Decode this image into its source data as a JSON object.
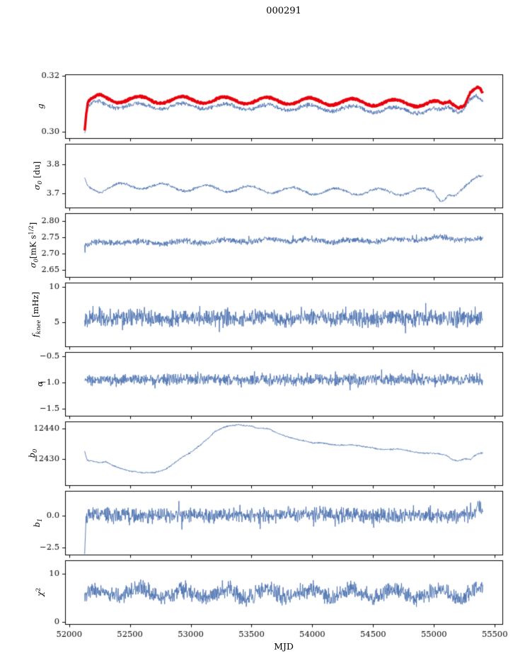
{
  "chart_data": {
    "type": "line",
    "title": "000291",
    "xlabel": "MJD",
    "xlim": [
      51967,
      55563
    ],
    "x_data_range": [
      52128,
      55402
    ],
    "xticks": [
      52000,
      52500,
      53000,
      53500,
      54000,
      54500,
      55000,
      55500
    ],
    "xtick_labels": [
      "52000",
      "52500",
      "53000",
      "53500",
      "54000",
      "54500",
      "55000",
      "55500"
    ],
    "colors": {
      "primary_line": "#4c72b0",
      "highlight_line": "#e8000b",
      "axis": "#000000"
    },
    "panels": [
      {
        "ylabel_segments": [
          [
            "i",
            "g"
          ]
        ],
        "ylim": [
          0.2977,
          0.3205
        ],
        "yticks": [
          0.3,
          0.32
        ],
        "ytick_labels": [
          "0.30",
          "0.32"
        ],
        "series": [
          {
            "name": "g-secondary",
            "color": "#4c72b0",
            "width": 0.9,
            "seed": 3,
            "noise": 0.0006,
            "osc_amp": 0.001,
            "osc_period": 350,
            "osc_phase": 52142,
            "trend": [
              [
                52130,
                0.3
              ],
              [
                52145,
                0.3085
              ],
              [
                52200,
                0.3098
              ],
              [
                52300,
                0.3096
              ],
              [
                52500,
                0.3093
              ],
              [
                52700,
                0.309
              ],
              [
                53000,
                0.3092
              ],
              [
                53300,
                0.309
              ],
              [
                53600,
                0.3087
              ],
              [
                54000,
                0.3085
              ],
              [
                54300,
                0.3082
              ],
              [
                54600,
                0.3078
              ],
              [
                54900,
                0.3075
              ],
              [
                55000,
                0.3074
              ],
              [
                55060,
                0.307
              ],
              [
                55120,
                0.309
              ],
              [
                55180,
                0.3082
              ],
              [
                55230,
                0.308
              ],
              [
                55290,
                0.3113
              ],
              [
                55340,
                0.312
              ],
              [
                55380,
                0.311
              ],
              [
                55402,
                0.3098
              ]
            ]
          },
          {
            "name": "g-main",
            "color": "#e8000b",
            "width": 3.4,
            "seed": 5,
            "noise": 0.00028,
            "osc_amp": 0.0012,
            "osc_period": 350,
            "osc_phase": 52142,
            "trend": [
              [
                52128,
                0.3005
              ],
              [
                52140,
                0.306
              ],
              [
                52155,
                0.3105
              ],
              [
                52250,
                0.3122
              ],
              [
                52400,
                0.3116
              ],
              [
                52700,
                0.3113
              ],
              [
                53000,
                0.3114
              ],
              [
                53400,
                0.3112
              ],
              [
                53800,
                0.311
              ],
              [
                54200,
                0.3107
              ],
              [
                54600,
                0.3104
              ],
              [
                54900,
                0.3101
              ],
              [
                55010,
                0.31
              ],
              [
                55070,
                0.3092
              ],
              [
                55130,
                0.311
              ],
              [
                55200,
                0.3098
              ],
              [
                55250,
                0.3102
              ],
              [
                55300,
                0.3138
              ],
              [
                55350,
                0.3147
              ],
              [
                55380,
                0.3143
              ],
              [
                55402,
                0.3125
              ]
            ]
          }
        ]
      },
      {
        "ylabel_segments": [
          [
            "i",
            "σ"
          ],
          [
            "isub",
            "0"
          ],
          [
            "n",
            " [du]"
          ]
        ],
        "ylim": [
          3.65,
          3.87
        ],
        "yticks": [
          3.7,
          3.8
        ],
        "ytick_labels": [
          "3.7",
          "3.8"
        ],
        "series": [
          {
            "name": "sigma0-du",
            "color": "#4c72b0",
            "width": 0.9,
            "seed": 9,
            "noise": 0.0035,
            "osc_amp": 0.011,
            "osc_period": 355,
            "osc_phase": 52330,
            "trend": [
              [
                52128,
                3.748
              ],
              [
                52150,
                3.726
              ],
              [
                52250,
                3.712
              ],
              [
                52400,
                3.722
              ],
              [
                52600,
                3.726
              ],
              [
                52900,
                3.718
              ],
              [
                53200,
                3.716
              ],
              [
                53600,
                3.712
              ],
              [
                54000,
                3.706
              ],
              [
                54400,
                3.705
              ],
              [
                54800,
                3.704
              ],
              [
                55000,
                3.706
              ],
              [
                55060,
                3.678
              ],
              [
                55120,
                3.7
              ],
              [
                55180,
                3.69
              ],
              [
                55240,
                3.705
              ],
              [
                55300,
                3.73
              ],
              [
                55360,
                3.76
              ],
              [
                55402,
                3.768
              ]
            ]
          }
        ]
      },
      {
        "ylabel_segments": [
          [
            "i",
            "σ"
          ],
          [
            "isub",
            "0"
          ],
          [
            "n",
            "[mK s"
          ],
          [
            "sup",
            "1/2"
          ],
          [
            "n",
            "]"
          ]
        ],
        "ylim": [
          2.628,
          2.824
        ],
        "yticks": [
          2.65,
          2.7,
          2.75,
          2.8
        ],
        "ytick_labels": [
          "2.65",
          "2.70",
          "2.75",
          "2.80"
        ],
        "series": [
          {
            "name": "sigma0-mks",
            "color": "#4c72b0",
            "width": 0.9,
            "seed": 13,
            "noise": 0.0065,
            "osc_amp": 0.004,
            "osc_period": 350,
            "osc_phase": 52142,
            "spike_prob": 0.015,
            "spike_amp": 0.018,
            "trend": [
              [
                52128,
                2.728
              ],
              [
                52400,
                2.736
              ],
              [
                52700,
                2.733
              ],
              [
                53200,
                2.737
              ],
              [
                53700,
                2.742
              ],
              [
                54200,
                2.738
              ],
              [
                54700,
                2.742
              ],
              [
                55100,
                2.748
              ],
              [
                55250,
                2.745
              ],
              [
                55402,
                2.742
              ]
            ]
          }
        ]
      },
      {
        "ylabel_segments": [
          [
            "i",
            "f"
          ],
          [
            "isub",
            "knee"
          ],
          [
            "n",
            " [mHz]"
          ]
        ],
        "ylim": [
          1.6,
          10.6
        ],
        "yticks": [
          5,
          10
        ],
        "ytick_labels": [
          "5",
          "10"
        ],
        "series": [
          {
            "name": "fknee",
            "color": "#4c72b0",
            "width": 0.9,
            "seed": 17,
            "noise": 0.9,
            "osc_amp": 0.12,
            "osc_period": 350,
            "osc_phase": 52142,
            "spike_prob": 0.05,
            "spike_amp": 1.6,
            "trend": [
              [
                52128,
                5.55
              ],
              [
                53000,
                5.6
              ],
              [
                54000,
                5.55
              ],
              [
                55000,
                5.6
              ],
              [
                55402,
                5.6
              ]
            ]
          }
        ]
      },
      {
        "ylabel_segments": [
          [
            "i",
            "α"
          ]
        ],
        "ylim": [
          -1.635,
          -0.419
        ],
        "yticks": [
          -1.5,
          -1.0,
          -0.5
        ],
        "ytick_labels": [
          "−1.5",
          "−1.0",
          "−0.5"
        ],
        "series": [
          {
            "name": "alpha",
            "color": "#4c72b0",
            "width": 0.9,
            "seed": 21,
            "noise": 0.08,
            "osc_amp": 0,
            "osc_period": 350,
            "osc_phase": 52142,
            "spike_prob": 0.03,
            "spike_amp": 0.15,
            "trend": [
              [
                52128,
                -0.95
              ],
              [
                53000,
                -0.94
              ],
              [
                54000,
                -0.95
              ],
              [
                55000,
                -0.94
              ],
              [
                55402,
                -0.95
              ]
            ]
          }
        ]
      },
      {
        "ylabel_segments": [
          [
            "i",
            "b"
          ],
          [
            "isub",
            "0"
          ]
        ],
        "ylim": [
          12421.4,
          12442.3
        ],
        "yticks": [
          12430,
          12440
        ],
        "ytick_labels": [
          "12430",
          "12440"
        ],
        "series": [
          {
            "name": "b0",
            "color": "#4c72b0",
            "width": 0.9,
            "seed": 25,
            "noise": 0.18,
            "osc_amp": 0.25,
            "osc_period": 355,
            "osc_phase": 52142,
            "trend": [
              [
                52128,
                12432.5
              ],
              [
                52150,
                12429.5
              ],
              [
                52250,
                12428.6
              ],
              [
                52300,
                12429.0
              ],
              [
                52400,
                12427.5
              ],
              [
                52500,
                12426.0
              ],
              [
                52600,
                12425.2
              ],
              [
                52700,
                12425.6
              ],
              [
                52800,
                12427.0
              ],
              [
                52900,
                12429.5
              ],
              [
                53000,
                12432.0
              ],
              [
                53100,
                12435.5
              ],
              [
                53200,
                12439.0
              ],
              [
                53300,
                12440.5
              ],
              [
                53400,
                12441.3
              ],
              [
                53500,
                12441.0
              ],
              [
                53550,
                12440.2
              ],
              [
                53650,
                12439.5
              ],
              [
                53700,
                12438.5
              ],
              [
                53800,
                12437.5
              ],
              [
                53900,
                12436.3
              ],
              [
                54000,
                12435.0
              ],
              [
                54100,
                12435.2
              ],
              [
                54200,
                12434.8
              ],
              [
                54300,
                12434.5
              ],
              [
                54400,
                12434.0
              ],
              [
                54500,
                12433.8
              ],
              [
                54600,
                12433.2
              ],
              [
                54700,
                12433.0
              ],
              [
                54800,
                12432.6
              ],
              [
                54900,
                12432.2
              ],
              [
                55000,
                12431.8
              ],
              [
                55100,
                12431.0
              ],
              [
                55150,
                12429.8
              ],
              [
                55200,
                12429.5
              ],
              [
                55250,
                12430.3
              ],
              [
                55300,
                12430.0
              ],
              [
                55350,
                12431.5
              ],
              [
                55402,
                12431.8
              ]
            ]
          }
        ]
      },
      {
        "ylabel_segments": [
          [
            "i",
            "b"
          ],
          [
            "isub",
            "1"
          ]
        ],
        "ylim": [
          -3.06,
          1.94
        ],
        "yticks": [
          -2.5,
          0.0
        ],
        "ytick_labels": [
          "−2.5",
          "0.0"
        ],
        "series": [
          {
            "name": "b1",
            "color": "#4c72b0",
            "width": 0.9,
            "seed": 29,
            "noise": 0.45,
            "osc_amp": 0,
            "osc_period": 350,
            "osc_phase": 52142,
            "spike_prob": 0.04,
            "spike_amp": 0.8,
            "trend": [
              [
                52128,
                -2.55
              ],
              [
                52138,
                -0.6
              ],
              [
                52150,
                0.05
              ],
              [
                53000,
                0.0
              ],
              [
                54000,
                0.05
              ],
              [
                55000,
                0.0
              ],
              [
                55340,
                0.05
              ],
              [
                55365,
                1.25
              ],
              [
                55385,
                0.4
              ],
              [
                55402,
                0.3
              ]
            ]
          }
        ]
      },
      {
        "ylabel_segments": [
          [
            "i",
            "χ"
          ],
          [
            "sup",
            "2"
          ]
        ],
        "ylim": [
          -0.5,
          12.9
        ],
        "yticks": [
          0,
          10
        ],
        "ytick_labels": [
          "0",
          "10"
        ],
        "series": [
          {
            "name": "chi2",
            "color": "#4c72b0",
            "width": 0.9,
            "seed": 33,
            "noise": 1.3,
            "osc_amp": 0.9,
            "osc_period": 350,
            "osc_phase": 52142,
            "spike_prob": 0.03,
            "spike_amp": 1.8,
            "trend": [
              [
                52128,
                5.6
              ],
              [
                52400,
                6.2
              ],
              [
                53000,
                5.8
              ],
              [
                54000,
                6.0
              ],
              [
                55000,
                5.8
              ],
              [
                55402,
                6.2
              ]
            ]
          }
        ]
      }
    ]
  }
}
